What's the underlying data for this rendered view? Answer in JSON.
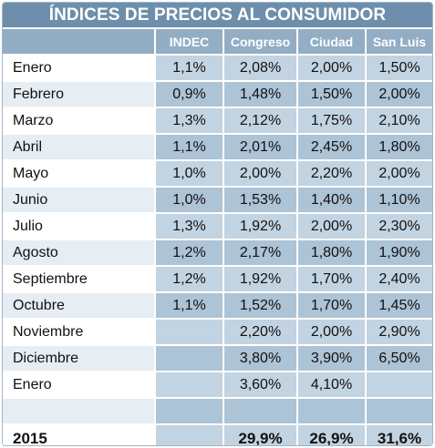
{
  "chart_data": {
    "type": "table",
    "title": "ÍNDICES DE PRECIOS AL CONSUMIDOR",
    "columns": [
      "",
      "INDEC",
      "Congreso",
      "Ciudad",
      "San Luis"
    ],
    "rows": [
      {
        "label": "Enero",
        "values": [
          "1,1%",
          "2,08%",
          "2,00%",
          "1,50%"
        ]
      },
      {
        "label": "Febrero",
        "values": [
          "0,9%",
          "1,48%",
          "1,50%",
          "2,00%"
        ]
      },
      {
        "label": "Marzo",
        "values": [
          "1,3%",
          "2,12%",
          "1,75%",
          "2,10%"
        ]
      },
      {
        "label": "Abril",
        "values": [
          "1,1%",
          "2,01%",
          "2,45%",
          "1,80%"
        ]
      },
      {
        "label": "Mayo",
        "values": [
          "1,0%",
          "2,00%",
          "2,20%",
          "2,00%"
        ]
      },
      {
        "label": "Junio",
        "values": [
          "1,0%",
          "1,53%",
          "1,40%",
          "1,10%"
        ]
      },
      {
        "label": "Julio",
        "values": [
          "1,3%",
          "1,92%",
          "2,00%",
          "2,30%"
        ]
      },
      {
        "label": "Agosto",
        "values": [
          "1,2%",
          "2,17%",
          "1,80%",
          "1,90%"
        ]
      },
      {
        "label": "Septiembre",
        "values": [
          "1,2%",
          "1,92%",
          "1,70%",
          "2,40%"
        ]
      },
      {
        "label": "Octubre",
        "values": [
          "1,1%",
          "1,52%",
          "1,70%",
          "1,45%"
        ]
      },
      {
        "label": "Noviembre",
        "values": [
          "",
          "2,20%",
          "2,00%",
          "2,90%"
        ]
      },
      {
        "label": "Diciembre",
        "values": [
          "",
          "3,80%",
          "3,90%",
          "6,50%"
        ]
      },
      {
        "label": "Enero",
        "values": [
          "",
          "3,60%",
          "4,10%",
          ""
        ]
      },
      {
        "label": "",
        "values": [
          "",
          "",
          "",
          ""
        ]
      }
    ],
    "total": {
      "label": "2015",
      "values": [
        "",
        "29,9%",
        "26,9%",
        "31,6%"
      ]
    }
  }
}
